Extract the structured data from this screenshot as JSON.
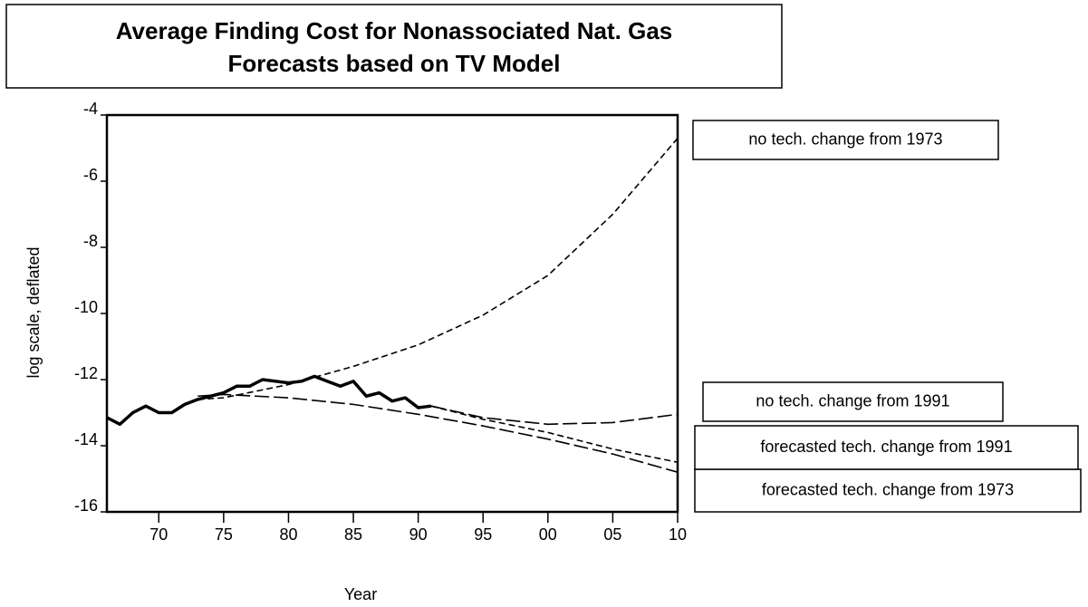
{
  "chart_data": {
    "type": "line",
    "title": "Average Finding Cost for Nonassociated Nat. Gas",
    "subtitle": "Forecasts based on TV Model",
    "x_label": "Year",
    "y_label": "log scale, deflated",
    "xlim": [
      1966,
      2010
    ],
    "xticks": [
      {
        "value": 1970,
        "label": "70"
      },
      {
        "value": 1975,
        "label": "75"
      },
      {
        "value": 1980,
        "label": "80"
      },
      {
        "value": 1985,
        "label": "85"
      },
      {
        "value": 1990,
        "label": "90"
      },
      {
        "value": 1995,
        "label": "95"
      },
      {
        "value": 2000,
        "label": "00"
      },
      {
        "value": 2005,
        "label": "05"
      },
      {
        "value": 2010,
        "label": "10"
      }
    ],
    "ylim": [
      -16,
      -4
    ],
    "yticks": [
      -4,
      -6,
      -8,
      -10,
      -12,
      -14,
      -16
    ],
    "series": [
      {
        "color": "#000000",
        "x": [
          1966,
          1967,
          1968,
          1969,
          1970,
          1971,
          1972,
          1973,
          1974,
          1975,
          1976,
          1977,
          1978,
          1979,
          1980,
          1981,
          1982,
          1983,
          1984,
          1985,
          1986,
          1987,
          1988,
          1989,
          1990,
          1991
        ],
        "values": [
          -13.15,
          -13.35,
          -13.0,
          -12.8,
          -13.0,
          -13.0,
          -12.75,
          -12.6,
          -12.5,
          -12.4,
          -12.2,
          -12.2,
          -12.0,
          -12.05,
          -12.1,
          -12.05,
          -11.9,
          -12.05,
          -12.2,
          -12.05,
          -12.5,
          -12.4,
          -12.65,
          -12.55,
          -12.85,
          -12.8
        ]
      },
      {
        "name": "no tech. change from 1973",
        "color": "#000000",
        "x": [
          1973,
          1975,
          1980,
          1985,
          1990,
          1995,
          2000,
          2005,
          2010
        ],
        "values": [
          -12.6,
          -12.55,
          -12.15,
          -11.6,
          -10.95,
          -10.05,
          -8.85,
          -7.0,
          -4.7
        ]
      },
      {
        "name": "forecasted tech. change from 1973",
        "color": "#000000",
        "x": [
          1973,
          1975,
          1980,
          1985,
          1990,
          1995,
          2000,
          2005,
          2010
        ],
        "values": [
          -12.5,
          -12.45,
          -12.55,
          -12.75,
          -13.05,
          -13.4,
          -13.8,
          -14.25,
          -14.8
        ]
      },
      {
        "name": "no tech. change from 1991",
        "color": "#000000",
        "x": [
          1991,
          1995,
          2000,
          2005,
          2010
        ],
        "values": [
          -12.8,
          -13.15,
          -13.35,
          -13.3,
          -13.05
        ]
      },
      {
        "name": "forecasted tech. change from 1991",
        "color": "#000000",
        "x": [
          1991,
          1995,
          2000,
          2005,
          2010
        ],
        "values": [
          -12.8,
          -13.2,
          -13.6,
          -14.1,
          -14.5
        ]
      }
    ]
  }
}
